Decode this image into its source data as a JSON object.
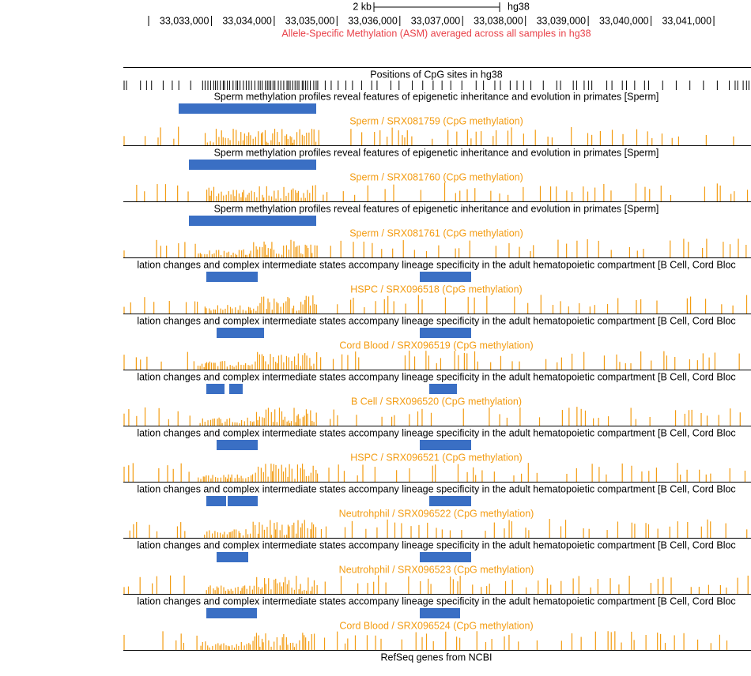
{
  "scale": {
    "label": "2 kb",
    "assembly": "hg38"
  },
  "ruler_labels": [
    "33,033,000",
    "33,034,000",
    "33,035,000",
    "33,036,000",
    "33,037,000",
    "33,038,000",
    "33,039,000",
    "33,040,000",
    "33,041,000"
  ],
  "asm_title": "Allele-Specific Methylation (ASM) averaged across all samples in hg38",
  "cpg_title": "Positions of CpG sites in hg38",
  "tracks": [
    {
      "title": "Sperm methylation profiles reveal features of epigenetic inheritance and evolution in primates [Sperm]",
      "label": "Sperm / SRX081759 (CpG methylation)"
    },
    {
      "title": "Sperm methylation profiles reveal features of epigenetic inheritance and evolution in primates [Sperm]",
      "label": "Sperm / SRX081760 (CpG methylation)"
    },
    {
      "title": "Sperm methylation profiles reveal features of epigenetic inheritance and evolution in primates [Sperm]",
      "label": "Sperm / SRX081761 (CpG methylation)"
    },
    {
      "title": "lation changes and complex intermediate states accompany lineage specificity in the adult hematopoietic compartment [B Cell, Cord Bloc",
      "label": "HSPC / SRX096518 (CpG methylation)"
    },
    {
      "title": "lation changes and complex intermediate states accompany lineage specificity in the adult hematopoietic compartment [B Cell, Cord Bloc",
      "label": "Cord Blood / SRX096519 (CpG methylation)"
    },
    {
      "title": "lation changes and complex intermediate states accompany lineage specificity in the adult hematopoietic compartment [B Cell, Cord Bloc",
      "label": "B Cell / SRX096520 (CpG methylation)"
    },
    {
      "title": "lation changes and complex intermediate states accompany lineage specificity in the adult hematopoietic compartment [B Cell, Cord Bloc",
      "label": "HSPC / SRX096521 (CpG methylation)"
    },
    {
      "title": "lation changes and complex intermediate states accompany lineage specificity in the adult hematopoietic compartment [B Cell, Cord Bloc",
      "label": "Neutrohphil / SRX096522 (CpG methylation)"
    },
    {
      "title": "lation changes and complex intermediate states accompany lineage specificity in the adult hematopoietic compartment [B Cell, Cord Bloc",
      "label": "Neutrohphil / SRX096523 (CpG methylation)"
    },
    {
      "title": "lation changes and complex intermediate states accompany lineage specificity in the adult hematopoietic compartment [B Cell, Cord Bloc",
      "label": "Cord Blood / SRX096524 (CpG methylation)"
    }
  ],
  "refseq_title": "RefSeq genes from NCBI"
}
